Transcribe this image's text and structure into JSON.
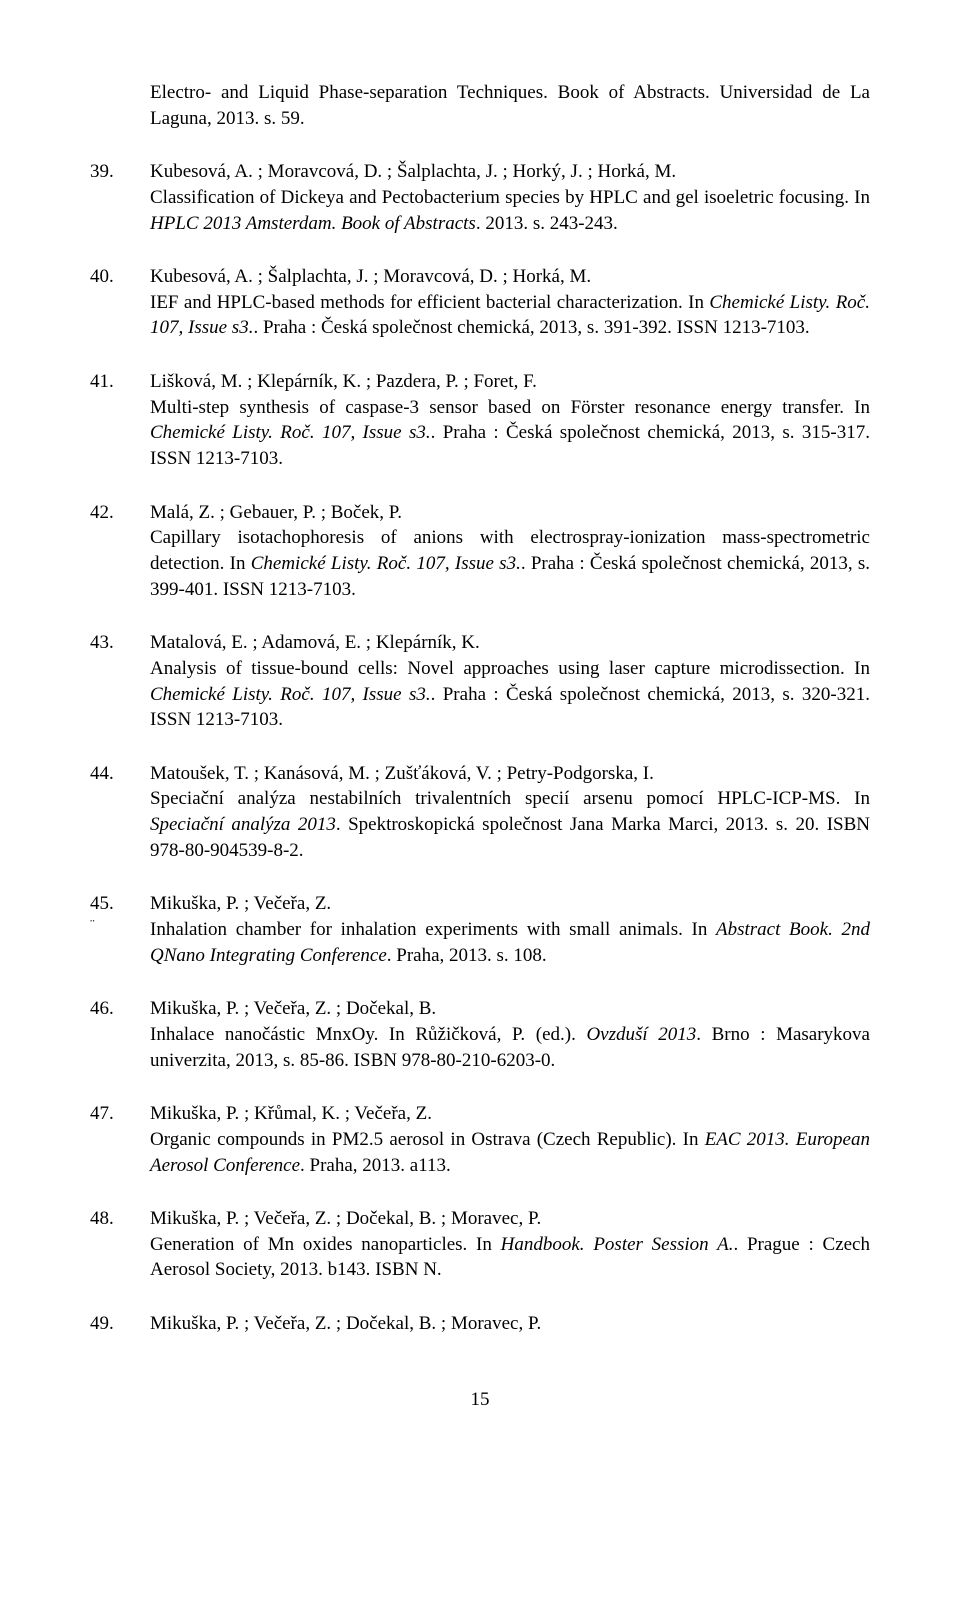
{
  "continuation": "Electro- and Liquid Phase-separation Techniques. Book of Abstracts. Universidad de La Laguna, 2013. s. 59.",
  "entries": [
    {
      "num": "39.",
      "authors": "Kubesová, A. ; Moravcová, D. ; Šalplachta, J. ; Horký, J. ; Horká, M.",
      "text_pre": "Classification of Dickeya and Pectobacterium species by HPLC and gel isoeletric focusing. In ",
      "italic1": "HPLC 2013 Amsterdam. Book of Abstracts",
      "text_post": ". 2013. s. 243-243."
    },
    {
      "num": "40.",
      "authors": "Kubesová, A. ; Šalplachta, J. ; Moravcová, D. ; Horká, M.",
      "text_pre": "IEF and HPLC-based methods for efficient bacterial characterization. In ",
      "italic1": "Chemické Listy. Roč. 107, Issue s3.",
      "text_post": ". Praha : Česká společnost chemická, 2013, s. 391-392. ISSN 1213-7103."
    },
    {
      "num": "41.",
      "authors": "Lišková, M. ; Klepárník, K. ; Pazdera, P. ; Foret, F.",
      "text_pre": "Multi-step synthesis of caspase-3 sensor based on Förster resonance energy transfer. In ",
      "italic1": "Chemické Listy. Roč. 107, Issue s3.",
      "text_post": ". Praha : Česká společnost chemická, 2013, s. 315-317. ISSN 1213-7103."
    },
    {
      "num": "42.",
      "authors": "Malá, Z. ; Gebauer, P. ; Boček, P.",
      "text_pre": "Capillary isotachophoresis of anions with electrospray-ionization mass-spectrometric detection. In ",
      "italic1": "Chemické Listy. Roč. 107, Issue s3.",
      "text_post": ". Praha : Česká společnost chemická, 2013, s. 399-401. ISSN 1213-7103."
    },
    {
      "num": "43.",
      "authors": "Matalová, E. ; Adamová, E. ; Klepárník, K.",
      "text_pre": "Analysis of tissue-bound cells: Novel approaches using laser capture microdissection. In ",
      "italic1": "Chemické Listy. Roč. 107, Issue s3.",
      "text_post": ". Praha : Česká společnost chemická, 2013, s. 320-321. ISSN 1213-7103."
    },
    {
      "num": "44.",
      "authors": "Matoušek, T. ; Kanásová, M. ; Zušťáková, V. ; Petry-Podgorska, I.",
      "text_pre": "Speciační analýza nestabilních trivalentních specií arsenu pomocí HPLC-ICP-MS. In ",
      "italic1": "Speciační analýza 2013",
      "text_post": ". Spektroskopická společnost Jana Marka Marci, 2013. s. 20. ISBN 978-80-904539-8-2."
    },
    {
      "num": "45.",
      "sub": "¨",
      "authors": "Mikuška, P. ; Večeřa, Z.",
      "text_pre": "Inhalation chamber for inhalation experiments with small animals. In ",
      "italic1": "Abstract Book. 2nd QNano Integrating Conference",
      "text_post": ". Praha, 2013. s. 108."
    },
    {
      "num": "46.",
      "authors": "Mikuška, P. ; Večeřa, Z. ; Dočekal, B.",
      "text_pre": "Inhalace nanočástic MnxOy. In Růžičková, P. (ed.). ",
      "italic1": "Ovzduší 2013",
      "text_post": ". Brno : Masarykova univerzita, 2013, s. 85-86. ISBN 978-80-210-6203-0."
    },
    {
      "num": "47.",
      "authors": "Mikuška, P. ; Křůmal, K. ; Večeřa, Z.",
      "text_pre": "Organic compounds in PM2.5 aerosol in Ostrava (Czech Republic). In ",
      "italic1": "EAC 2013. European Aerosol Conference",
      "text_post": ". Praha, 2013. a113."
    },
    {
      "num": "48.",
      "authors": "Mikuška, P. ; Večeřa, Z. ; Dočekal, B. ; Moravec, P.",
      "text_pre": "Generation of Mn oxides nanoparticles. In ",
      "italic1": "Handbook. Poster Session A.",
      "text_post": ". Prague : Czech Aerosol Society, 2013. b143. ISBN N."
    },
    {
      "num": "49.",
      "authors": "Mikuška, P. ; Večeřa, Z. ; Dočekal, B. ; Moravec, P.",
      "text_pre": "",
      "italic1": "",
      "text_post": ""
    }
  ],
  "page_number": "15"
}
